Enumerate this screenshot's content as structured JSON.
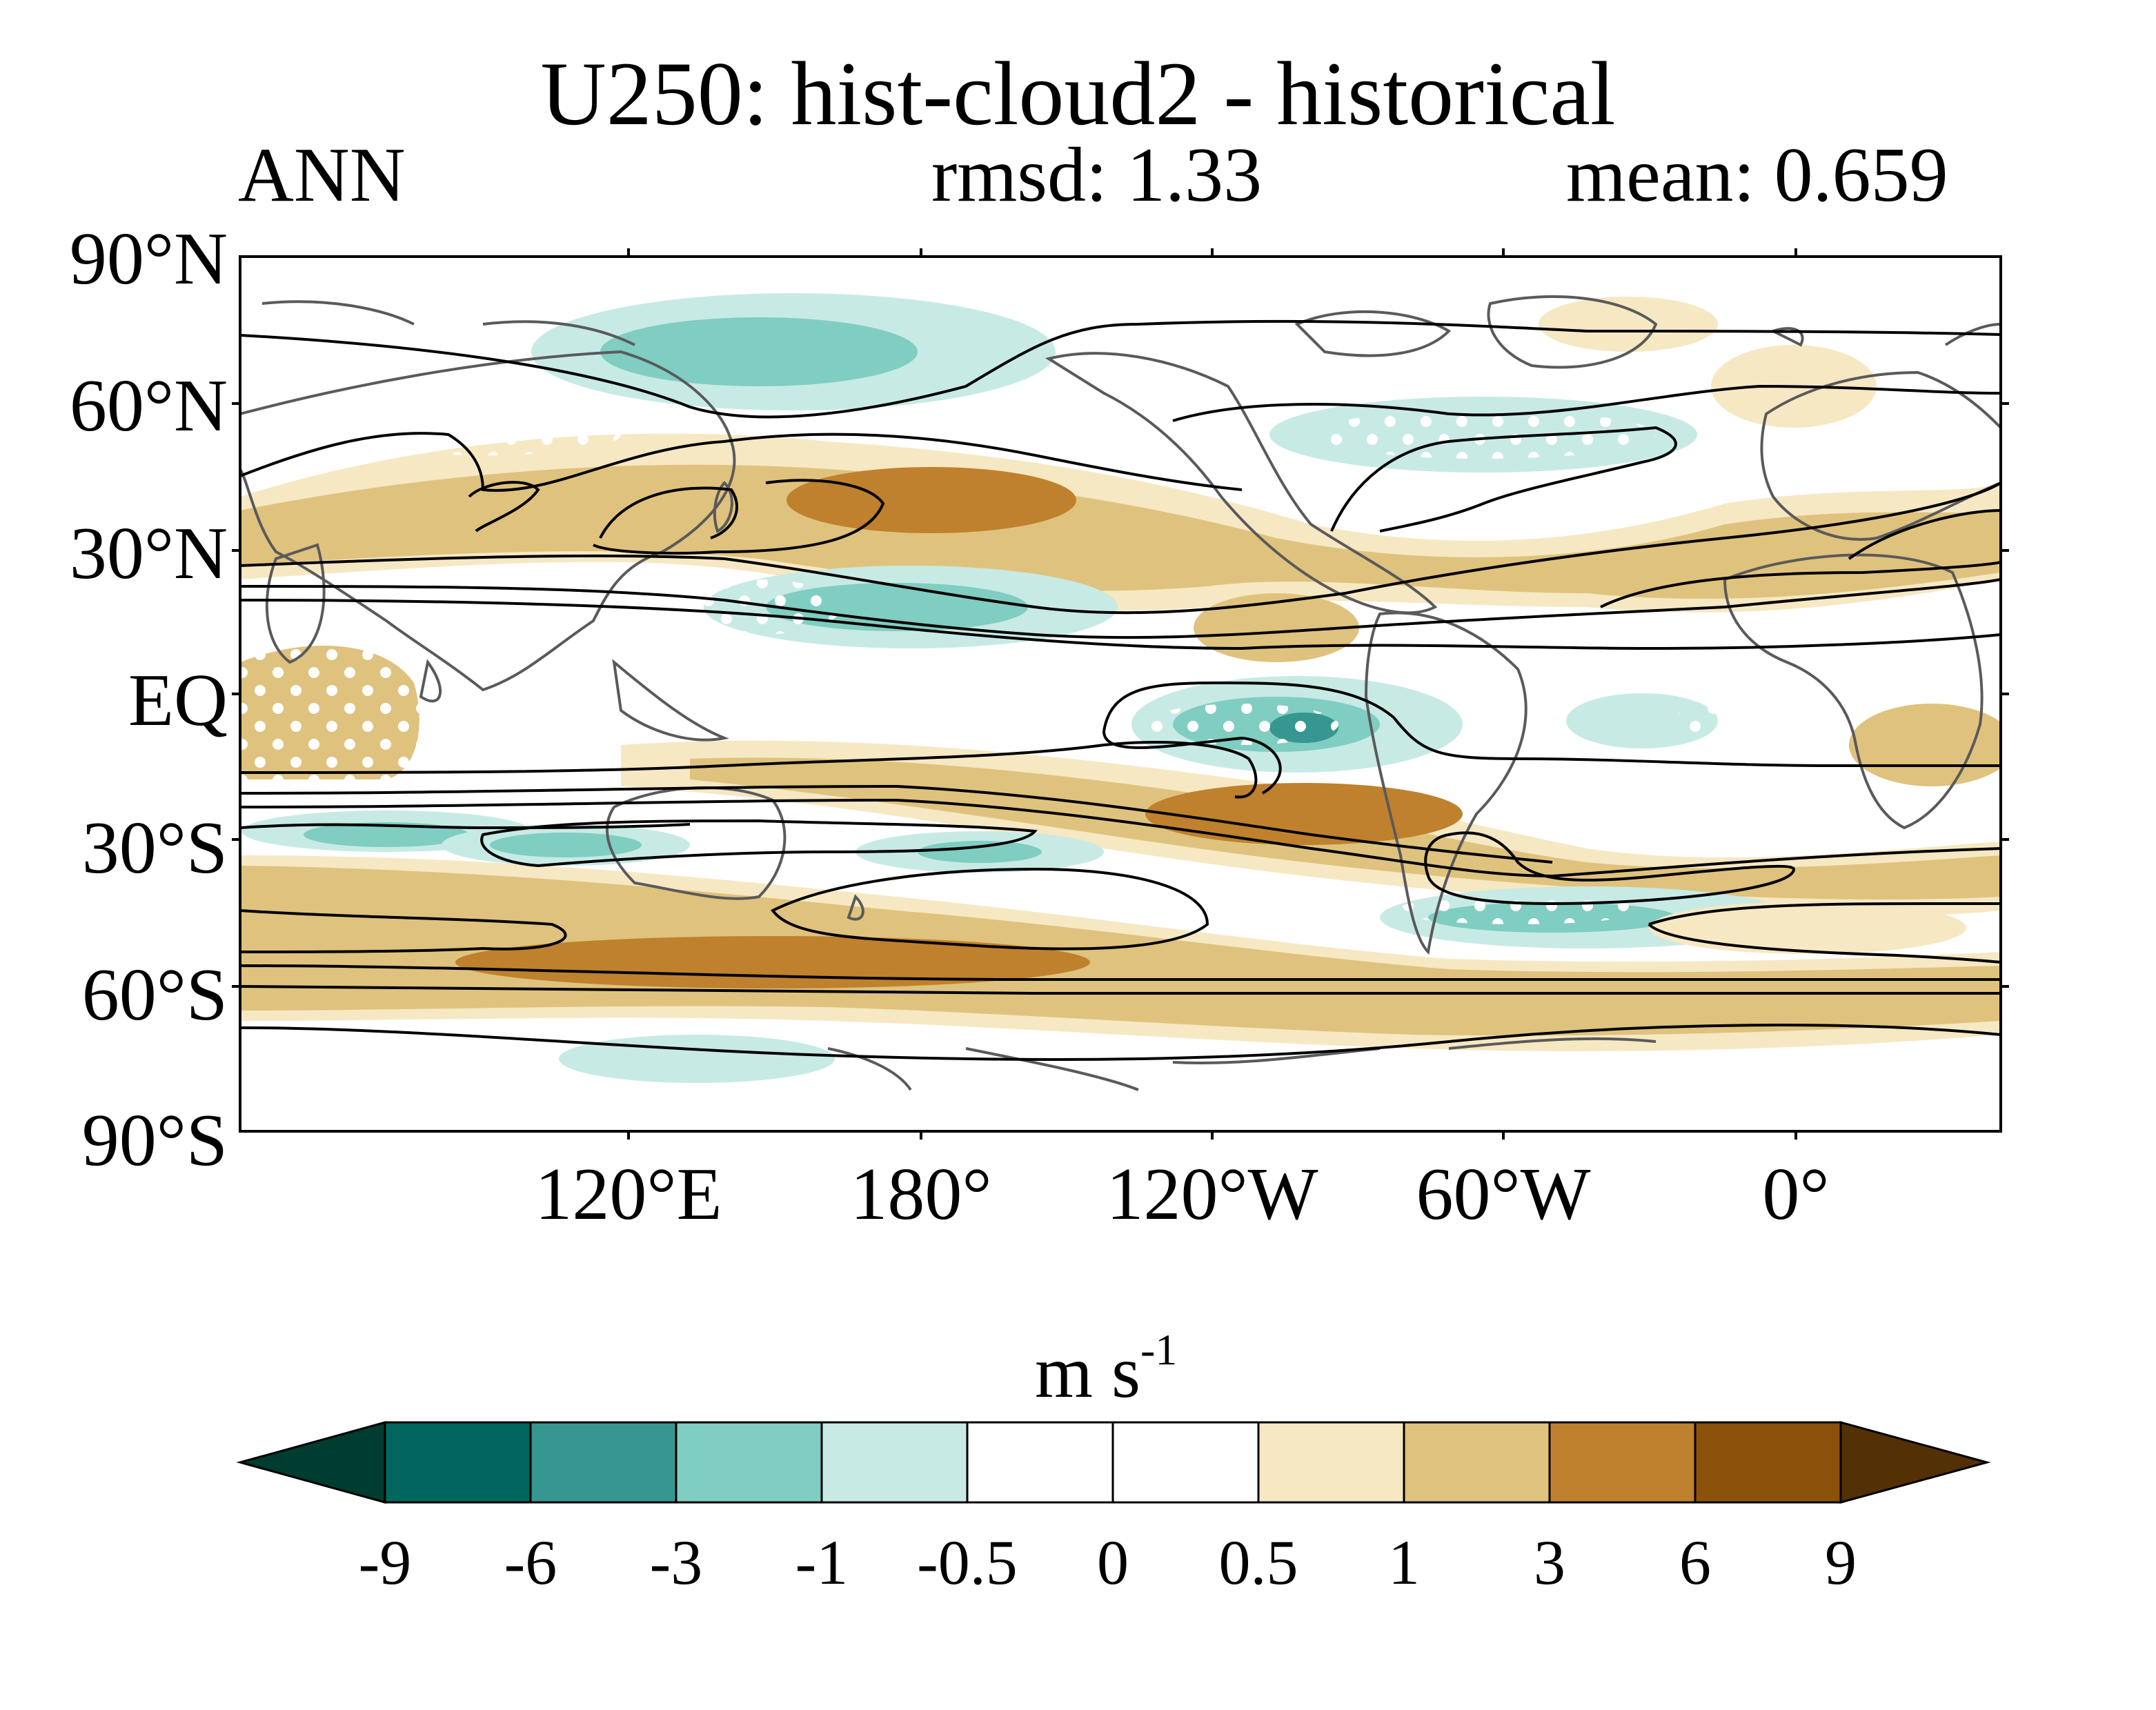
{
  "header": {
    "title": "U250: hist-cloud2 - historical",
    "season": "ANN",
    "rmsd": "rmsd: 1.33",
    "mean": "mean: 0.659"
  },
  "axes": {
    "lat_labels": [
      "90°N",
      "60°N",
      "30°N",
      "EQ",
      "30°S",
      "60°S",
      "90°S"
    ],
    "lon_labels": [
      "120°E",
      "180°",
      "120°W",
      "60°W",
      "0°"
    ]
  },
  "colorbar": {
    "units_base": "m s",
    "units_exp": "-1",
    "levels": [
      "-9",
      "-6",
      "-3",
      "-1",
      "-0.5",
      "0",
      "0.5",
      "1",
      "3",
      "6",
      "9"
    ],
    "colors": [
      "#003c30",
      "#01665e",
      "#35978f",
      "#80cdc1",
      "#c7eae5",
      "#ffffff",
      "#ffffff",
      "#f6e8c3",
      "#dfc27d",
      "#bf812d",
      "#8c510a",
      "#543005"
    ]
  },
  "chart_data": {
    "type": "heatmap",
    "title": "U250: hist-cloud2 - historical",
    "variable": "U250 difference (hist-cloud2 - historical), annual mean",
    "units": "m s-1",
    "lon_range": [
      30,
      390
    ],
    "lat_range": [
      -90,
      90
    ],
    "anomaly_features": [
      {
        "lon": 120,
        "lat": 35,
        "sign": "positive",
        "level": "3 to 6"
      },
      {
        "lon": 165,
        "lat": 38,
        "sign": "positive",
        "level": "6 to 9"
      },
      {
        "lon": 180,
        "lat": 18,
        "sign": "negative",
        "level": "-1 to -3"
      },
      {
        "lon": 160,
        "lat": 70,
        "sign": "negative",
        "level": "-1 to -3"
      },
      {
        "lon": 255,
        "lat": -5,
        "sign": "negative",
        "level": "-3 to -6"
      },
      {
        "lon": 265,
        "lat": -25,
        "sign": "positive",
        "level": "3 to 6"
      },
      {
        "lon": 160,
        "lat": -55,
        "sign": "positive",
        "level": "3 to 6"
      },
      {
        "lon": 320,
        "lat": -45,
        "sign": "negative",
        "level": "-1 to -3"
      },
      {
        "lon": 70,
        "lat": -5,
        "sign": "positive",
        "level": "1 to 3"
      },
      {
        "lon": 30,
        "lat": -30,
        "sign": "negative",
        "level": "-1 to -3"
      },
      {
        "lon": 110,
        "lat": -30,
        "sign": "negative",
        "level": "-1 to -3"
      },
      {
        "lon": 170,
        "lat": -75,
        "sign": "negative",
        "level": "-0.5 to -1"
      },
      {
        "lon": 310,
        "lat": 50,
        "sign": "negative",
        "level": "-0.5 to -1"
      },
      {
        "lon": 60,
        "lat": 35,
        "sign": "positive",
        "level": "1 to 3"
      }
    ]
  }
}
